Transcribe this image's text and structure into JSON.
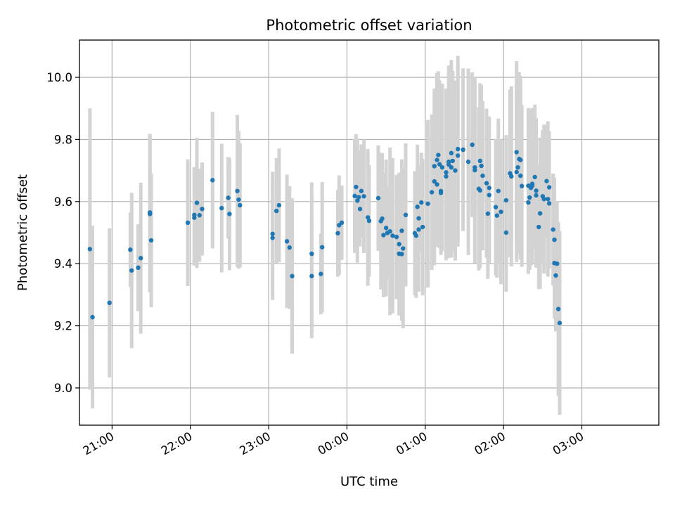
{
  "chart_data": {
    "type": "scatter",
    "title": "Photometric offset variation",
    "xlabel": "UTC time",
    "ylabel": "Photometric offset",
    "x_ticks": [
      "21:00",
      "22:00",
      "23:00",
      "00:00",
      "01:00",
      "02:00",
      "03:00"
    ],
    "y_ticks": [
      "9.0",
      "9.2",
      "9.4",
      "9.6",
      "9.8",
      "10.0"
    ],
    "ylim": [
      8.88,
      10.12
    ],
    "xlim": [
      "20:35",
      "03:59"
    ],
    "grid": true,
    "colors": {
      "points": "#1f77b4",
      "errorbars": "#d3d3d3"
    },
    "series": [
      {
        "points": [
          {
            "t": "20:43",
            "y": 9.447,
            "e": 0.453
          },
          {
            "t": "20:45",
            "y": 9.228,
            "e": 0.294
          },
          {
            "t": "20:58",
            "y": 9.274,
            "e": 0.24
          },
          {
            "t": "21:14",
            "y": 9.445,
            "e": 0.12
          },
          {
            "t": "21:15",
            "y": 9.378,
            "e": 0.25
          },
          {
            "t": "21:20",
            "y": 9.387,
            "e": 0.14
          },
          {
            "t": "21:22",
            "y": 9.418,
            "e": 0.243
          },
          {
            "t": "21:29",
            "y": 9.565,
            "e": 0.253
          },
          {
            "t": "21:29",
            "y": 9.56,
            "e": 0.253
          },
          {
            "t": "21:30",
            "y": 9.475,
            "e": 0.215
          },
          {
            "t": "21:58",
            "y": 9.532,
            "e": 0.204
          },
          {
            "t": "22:03",
            "y": 9.548,
            "e": 0.154
          },
          {
            "t": "22:03",
            "y": 9.557,
            "e": 0.154
          },
          {
            "t": "22:05",
            "y": 9.596,
            "e": 0.21
          },
          {
            "t": "22:07",
            "y": 9.556,
            "e": 0.15
          },
          {
            "t": "22:09",
            "y": 9.576,
            "e": 0.15
          },
          {
            "t": "22:17",
            "y": 9.669,
            "e": 0.22
          },
          {
            "t": "22:24",
            "y": 9.579,
            "e": 0.207
          },
          {
            "t": "22:29",
            "y": 9.612,
            "e": 0.131
          },
          {
            "t": "22:30",
            "y": 9.56,
            "e": 0.181
          },
          {
            "t": "22:36",
            "y": 9.634,
            "e": 0.245
          },
          {
            "t": "22:37",
            "y": 9.606,
            "e": 0.222
          },
          {
            "t": "22:38",
            "y": 9.588,
            "e": 0.2
          },
          {
            "t": "23:03",
            "y": 9.483,
            "e": 0.2
          },
          {
            "t": "23:03",
            "y": 9.496,
            "e": 0.2
          },
          {
            "t": "23:06",
            "y": 9.57,
            "e": 0.17
          },
          {
            "t": "23:08",
            "y": 9.588,
            "e": 0.183
          },
          {
            "t": "23:14",
            "y": 9.472,
            "e": 0.215
          },
          {
            "t": "23:16",
            "y": 9.452,
            "e": 0.198
          },
          {
            "t": "23:18",
            "y": 9.36,
            "e": 0.25
          },
          {
            "t": "23:33",
            "y": 9.36,
            "e": 0.2
          },
          {
            "t": "23:33",
            "y": 9.432,
            "e": 0.23
          },
          {
            "t": "23:40",
            "y": 9.367,
            "e": 0.13
          },
          {
            "t": "23:41",
            "y": 9.453,
            "e": 0.21
          },
          {
            "t": "23:53",
            "y": 9.498,
            "e": 0.14
          },
          {
            "t": "23:54",
            "y": 9.524,
            "e": 0.16
          },
          {
            "t": "23:56",
            "y": 9.532,
            "e": 0.12
          },
          {
            "t": "00:06",
            "y": 9.618,
            "e": 0.183
          },
          {
            "t": "00:07",
            "y": 9.647,
            "e": 0.17
          },
          {
            "t": "00:08",
            "y": 9.603,
            "e": 0.2
          },
          {
            "t": "00:09",
            "y": 9.614,
            "e": 0.15
          },
          {
            "t": "00:10",
            "y": 9.576,
            "e": 0.12
          },
          {
            "t": "00:11",
            "y": 9.634,
            "e": 0.15
          },
          {
            "t": "00:13",
            "y": 9.617,
            "e": 0.183
          },
          {
            "t": "00:16",
            "y": 9.549,
            "e": 0.22
          },
          {
            "t": "00:17",
            "y": 9.538,
            "e": 0.18
          },
          {
            "t": "00:24",
            "y": 9.611,
            "e": 0.17
          },
          {
            "t": "00:26",
            "y": 9.537,
            "e": 0.22
          },
          {
            "t": "00:27",
            "y": 9.545,
            "e": 0.21
          },
          {
            "t": "00:28",
            "y": 9.492,
            "e": 0.2
          },
          {
            "t": "00:30",
            "y": 9.515,
            "e": 0.22
          },
          {
            "t": "00:31",
            "y": 9.499,
            "e": 0.15
          },
          {
            "t": "00:33",
            "y": 9.504,
            "e": 0.27
          },
          {
            "t": "00:35",
            "y": 9.49,
            "e": 0.25
          },
          {
            "t": "00:38",
            "y": 9.486,
            "e": 0.2
          },
          {
            "t": "00:40",
            "y": 9.432,
            "e": 0.183
          },
          {
            "t": "00:40",
            "y": 9.463,
            "e": 0.23
          },
          {
            "t": "00:42",
            "y": 9.506,
            "e": 0.23
          },
          {
            "t": "00:42",
            "y": 9.431,
            "e": 0.215
          },
          {
            "t": "00:43",
            "y": 9.449,
            "e": 0.257
          },
          {
            "t": "00:45",
            "y": 9.557,
            "e": 0.23
          },
          {
            "t": "00:52",
            "y": 9.498,
            "e": 0.2
          },
          {
            "t": "00:53",
            "y": 9.49,
            "e": 0.2
          },
          {
            "t": "00:54",
            "y": 9.583,
            "e": 0.2
          },
          {
            "t": "00:55",
            "y": 9.546,
            "e": 0.17
          },
          {
            "t": "00:55",
            "y": 9.51,
            "e": 0.2
          },
          {
            "t": "00:57",
            "y": 9.597,
            "e": 0.16
          },
          {
            "t": "00:58",
            "y": 9.518,
            "e": 0.22
          },
          {
            "t": "01:02",
            "y": 9.593,
            "e": 0.27
          },
          {
            "t": "01:05",
            "y": 9.63,
            "e": 0.25
          },
          {
            "t": "01:07",
            "y": 9.665,
            "e": 0.27
          },
          {
            "t": "01:07",
            "y": 9.714,
            "e": 0.25
          },
          {
            "t": "01:09",
            "y": 9.655,
            "e": 0.2
          },
          {
            "t": "01:09",
            "y": 9.734,
            "e": 0.28
          },
          {
            "t": "01:10",
            "y": 9.75,
            "e": 0.27
          },
          {
            "t": "01:11",
            "y": 9.72,
            "e": 0.27
          },
          {
            "t": "01:12",
            "y": 9.628,
            "e": 0.2
          },
          {
            "t": "01:12",
            "y": 9.634,
            "e": 0.2
          },
          {
            "t": "01:13",
            "y": 9.71,
            "e": 0.27
          },
          {
            "t": "01:16",
            "y": 9.681,
            "e": 0.27
          },
          {
            "t": "01:16",
            "y": 9.694,
            "e": 0.27
          },
          {
            "t": "01:18",
            "y": 9.728,
            "e": 0.31
          },
          {
            "t": "01:18",
            "y": 9.719,
            "e": 0.3
          },
          {
            "t": "01:20",
            "y": 9.71,
            "e": 0.29
          },
          {
            "t": "01:20",
            "y": 9.756,
            "e": 0.3
          },
          {
            "t": "01:21",
            "y": 9.731,
            "e": 0.29
          },
          {
            "t": "01:23",
            "y": 9.7,
            "e": 0.29
          },
          {
            "t": "01:25",
            "y": 9.748,
            "e": 0.293
          },
          {
            "t": "01:25",
            "y": 9.769,
            "e": 0.3
          },
          {
            "t": "01:29",
            "y": 9.767,
            "e": 0.262
          },
          {
            "t": "01:33",
            "y": 9.728,
            "e": 0.3
          },
          {
            "t": "01:36",
            "y": 9.783,
            "e": 0.233
          },
          {
            "t": "01:38",
            "y": 9.701,
            "e": 0.3
          },
          {
            "t": "01:38",
            "y": 9.71,
            "e": 0.28
          },
          {
            "t": "01:41",
            "y": 9.641,
            "e": 0.263
          },
          {
            "t": "01:42",
            "y": 9.636,
            "e": 0.25
          },
          {
            "t": "01:42",
            "y": 9.731,
            "e": 0.25
          },
          {
            "t": "01:43",
            "y": 9.715,
            "e": 0.26
          },
          {
            "t": "01:44",
            "y": 9.683,
            "e": 0.24
          },
          {
            "t": "01:47",
            "y": 9.659,
            "e": 0.24
          },
          {
            "t": "01:48",
            "y": 9.561,
            "e": 0.21
          },
          {
            "t": "01:49",
            "y": 9.621,
            "e": 0.22
          },
          {
            "t": "01:49",
            "y": 9.644,
            "e": 0.23
          },
          {
            "t": "01:54",
            "y": 9.582,
            "e": 0.22
          },
          {
            "t": "01:55",
            "y": 9.555,
            "e": 0.2
          },
          {
            "t": "01:56",
            "y": 9.634,
            "e": 0.233
          },
          {
            "t": "01:58",
            "y": 9.567,
            "e": 0.233
          },
          {
            "t": "02:02",
            "y": 9.604,
            "e": 0.21
          },
          {
            "t": "02:02",
            "y": 9.5,
            "e": 0.19
          },
          {
            "t": "02:05",
            "y": 9.691,
            "e": 0.27
          },
          {
            "t": "02:06",
            "y": 9.681,
            "e": 0.29
          },
          {
            "t": "02:10",
            "y": 9.759,
            "e": 0.293
          },
          {
            "t": "02:10",
            "y": 9.695,
            "e": 0.29
          },
          {
            "t": "02:11",
            "y": 9.71,
            "e": 0.28
          },
          {
            "t": "02:12",
            "y": 9.737,
            "e": 0.28
          },
          {
            "t": "02:13",
            "y": 9.683,
            "e": 0.27
          },
          {
            "t": "02:13",
            "y": 9.734,
            "e": 0.27
          },
          {
            "t": "02:14",
            "y": 9.65,
            "e": 0.26
          },
          {
            "t": "02:19",
            "y": 9.597,
            "e": 0.23
          },
          {
            "t": "02:19",
            "y": 9.651,
            "e": 0.25
          },
          {
            "t": "02:20",
            "y": 9.613,
            "e": 0.233
          },
          {
            "t": "02:21",
            "y": 9.644,
            "e": 0.25
          },
          {
            "t": "02:22",
            "y": 9.657,
            "e": 0.233
          },
          {
            "t": "02:22",
            "y": 9.651,
            "e": 0.25
          },
          {
            "t": "02:24",
            "y": 9.679,
            "e": 0.233
          },
          {
            "t": "02:25",
            "y": 9.635,
            "e": 0.233
          },
          {
            "t": "02:25",
            "y": 9.62,
            "e": 0.233
          },
          {
            "t": "02:27",
            "y": 9.518,
            "e": 0.2
          },
          {
            "t": "02:28",
            "y": 9.562,
            "e": 0.244
          },
          {
            "t": "02:30",
            "y": 9.617,
            "e": 0.213
          },
          {
            "t": "02:31",
            "y": 9.608,
            "e": 0.24
          },
          {
            "t": "02:33",
            "y": 9.666,
            "e": 0.18
          },
          {
            "t": "02:34",
            "y": 9.608,
            "e": 0.25
          },
          {
            "t": "02:35",
            "y": 9.646,
            "e": 0.18
          },
          {
            "t": "02:35",
            "y": 9.594,
            "e": 0.21
          },
          {
            "t": "02:38",
            "y": 9.51,
            "e": 0.18
          },
          {
            "t": "02:39",
            "y": 9.402,
            "e": 0.18
          },
          {
            "t": "02:39",
            "y": 9.477,
            "e": 0.2
          },
          {
            "t": "02:40",
            "y": 9.362,
            "e": 0.18
          },
          {
            "t": "02:41",
            "y": 9.4,
            "e": 0.2
          },
          {
            "t": "02:42",
            "y": 9.254,
            "e": 0.28
          },
          {
            "t": "02:43",
            "y": 9.209,
            "e": 0.296
          }
        ]
      }
    ]
  }
}
